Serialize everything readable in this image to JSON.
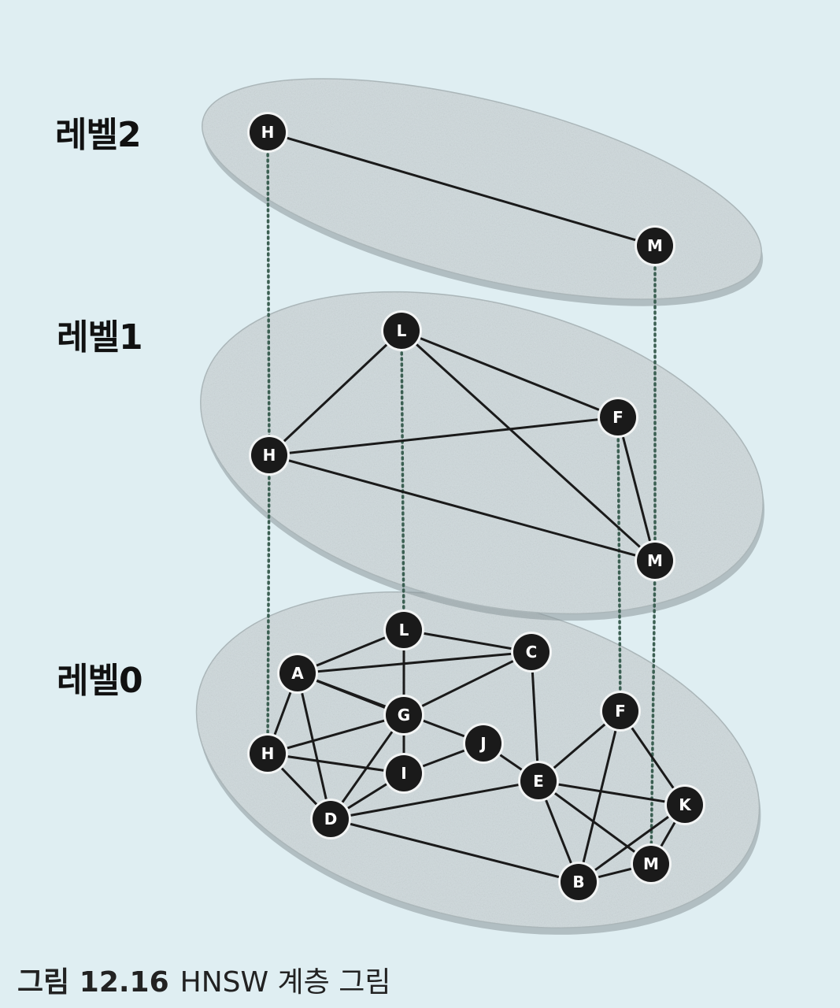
{
  "levels": [
    {
      "id": 2,
      "label": "레벨2",
      "nodes": [
        "H",
        "M"
      ],
      "edges": [
        [
          "H",
          "M"
        ]
      ]
    },
    {
      "id": 1,
      "label": "레벨1",
      "nodes": [
        "L",
        "F",
        "H",
        "M"
      ],
      "edges": [
        [
          "L",
          "H"
        ],
        [
          "L",
          "F"
        ],
        [
          "L",
          "M"
        ],
        [
          "H",
          "F"
        ],
        [
          "H",
          "M"
        ],
        [
          "F",
          "M"
        ]
      ]
    },
    {
      "id": 0,
      "label": "레벨0",
      "nodes": [
        "L",
        "A",
        "C",
        "F",
        "G",
        "J",
        "H",
        "I",
        "E",
        "K",
        "D",
        "M",
        "B"
      ],
      "edges": [
        [
          "A",
          "L"
        ],
        [
          "A",
          "C"
        ],
        [
          "A",
          "G"
        ],
        [
          "A",
          "H"
        ],
        [
          "A",
          "D"
        ],
        [
          "A",
          "J"
        ],
        [
          "L",
          "G"
        ],
        [
          "L",
          "C"
        ],
        [
          "G",
          "C"
        ],
        [
          "G",
          "H"
        ],
        [
          "G",
          "I"
        ],
        [
          "G",
          "D"
        ],
        [
          "H",
          "I"
        ],
        [
          "H",
          "D"
        ],
        [
          "I",
          "D"
        ],
        [
          "I",
          "J"
        ],
        [
          "J",
          "E"
        ],
        [
          "C",
          "E"
        ],
        [
          "D",
          "E"
        ],
        [
          "D",
          "B"
        ],
        [
          "F",
          "E"
        ],
        [
          "F",
          "B"
        ],
        [
          "F",
          "K"
        ],
        [
          "E",
          "K"
        ],
        [
          "E",
          "B"
        ],
        [
          "E",
          "M"
        ],
        [
          "K",
          "M"
        ],
        [
          "K",
          "B"
        ],
        [
          "M",
          "B"
        ]
      ]
    }
  ],
  "vertical_links": [
    "H",
    "M",
    "L",
    "F"
  ],
  "caption": {
    "number": "그림 12.16",
    "text": "HNSW 계층 그림"
  },
  "colors": {
    "plane_fill": "#cfdadd",
    "plane_edge": "#8a979b",
    "node_fill": "#1a1a1a",
    "edge": "#1a1a1a",
    "link": "#3b5f52",
    "background": "#dfeef2"
  }
}
